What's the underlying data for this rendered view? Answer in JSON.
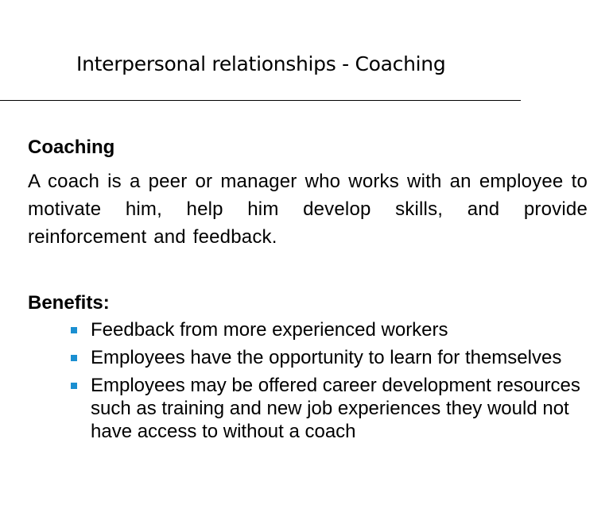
{
  "slide": {
    "title": "Interpersonal relationships - Coaching",
    "coaching_heading": "Coaching",
    "coaching_text": "A coach is a peer or manager who works with an employee to motivate him, help him develop skills, and provide reinforcement and feedback.",
    "benefits_heading": "Benefits:",
    "benefits": [
      "Feedback from more experienced workers",
      "Employees have the opportunity to learn for themselves",
      "Employees may be offered career development resources such as training and new job experiences they would not have access to without a coach"
    ]
  },
  "colors": {
    "bullet": "#1b8fd1",
    "text": "#000000",
    "background": "#ffffff"
  }
}
